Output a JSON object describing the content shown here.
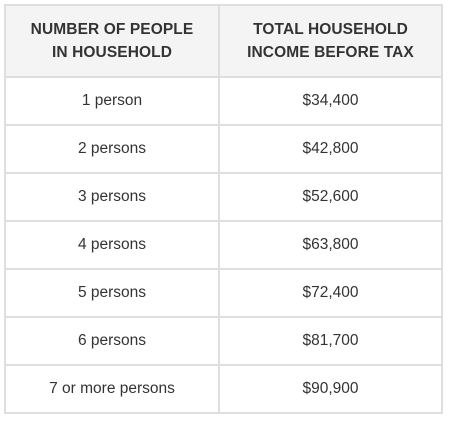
{
  "table": {
    "headers": [
      [
        "NUMBER OF PEOPLE",
        "IN HOUSEHOLD"
      ],
      [
        "TOTAL HOUSEHOLD",
        "INCOME BEFORE TAX"
      ]
    ],
    "rows": [
      [
        "1 person",
        "$34,400"
      ],
      [
        "2 persons",
        "$42,800"
      ],
      [
        "3 persons",
        "$52,600"
      ],
      [
        "4 persons",
        "$63,800"
      ],
      [
        "5 persons",
        "$72,400"
      ],
      [
        "6 persons",
        "$81,700"
      ],
      [
        "7 or more persons",
        "$90,900"
      ]
    ]
  },
  "colors": {
    "header_bg": "#f4f4f4",
    "border": "#dedede",
    "text": "#333333"
  }
}
